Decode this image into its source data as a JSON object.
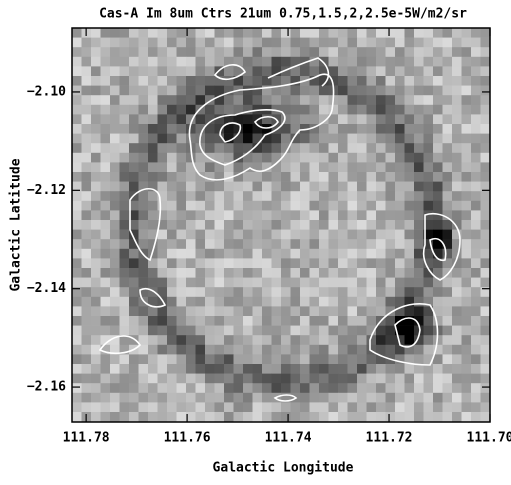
{
  "chart_data": {
    "type": "image",
    "title": "Cas-A Im 8um Ctrs 21um 0.75,1.5,2,2.5e-5W/m2/sr",
    "xlabel": "Galactic Longitude",
    "ylabel": "Galactic Latitude",
    "xlim": [
      111.7828,
      111.7
    ],
    "ylim": [
      -2.1671,
      -2.087
    ],
    "xticks": [
      111.78,
      111.76,
      111.74,
      111.72,
      {
        "value": 111.7,
        "label": "111.70"
      }
    ],
    "yticks": [
      {
        "value": -2.1,
        "label": "−2.10"
      },
      {
        "value": -2.12,
        "label": "−2.12"
      },
      {
        "value": -2.14,
        "label": "−2.14"
      },
      {
        "value": -2.16,
        "label": "−2.16"
      }
    ],
    "contour_color": "#ffffff"
  }
}
